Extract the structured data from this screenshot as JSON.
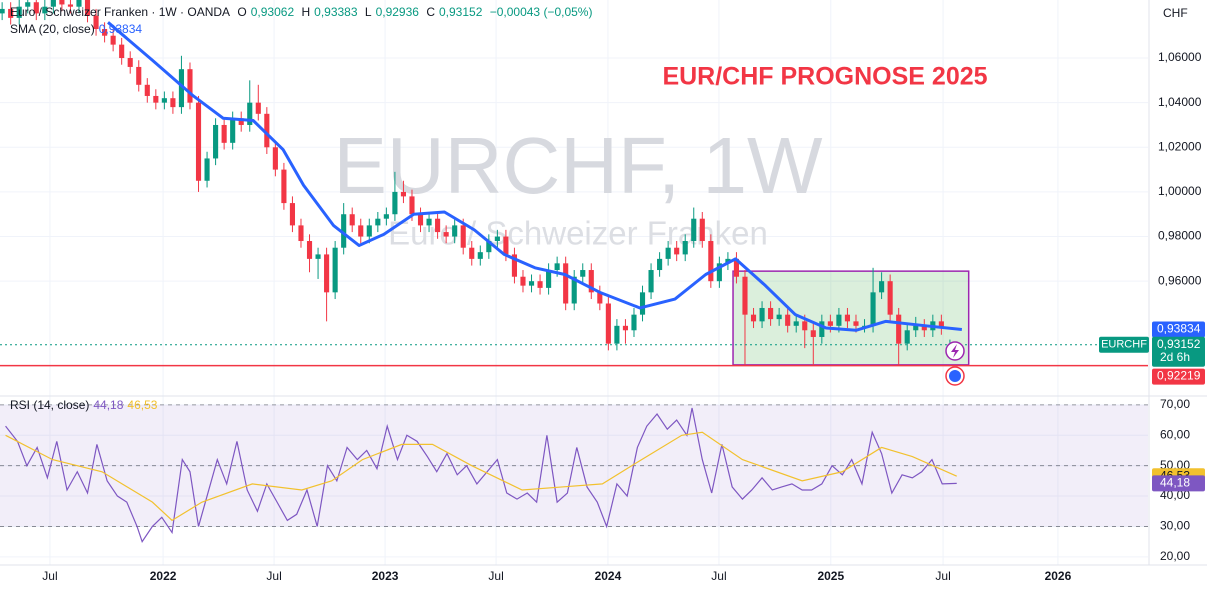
{
  "header": {
    "symbol": "Euro / Schweizer Franken · 1W · OANDA",
    "ohlc": [
      {
        "key": "O",
        "value": "0,93062"
      },
      {
        "key": "H",
        "value": "0,93383"
      },
      {
        "key": "L",
        "value": "0,92936"
      },
      {
        "key": "C",
        "value": "0,93152"
      }
    ],
    "change": "−0,00043 (−0,05%)"
  },
  "currency": "CHF",
  "chart_data": [
    {
      "type": "candlestick",
      "title": "EUR/CHF PROGNOSE 2025",
      "watermark": {
        "title": "EURCHF, 1W",
        "subtitle": "Euro / Schweizer Franken"
      },
      "up_color": "#089981",
      "down_color": "#f23645",
      "open": [
        1.08,
        1.082,
        1.078,
        1.083,
        1.085,
        1.08,
        1.083,
        1.086,
        1.084,
        1.083,
        1.086,
        1.079,
        1.073,
        1.07,
        1.066,
        1.06,
        1.056,
        1.048,
        1.043,
        1.04,
        1.042,
        1.038,
        1.055,
        1.04,
        1.005,
        1.015,
        1.03,
        1.022,
        1.033,
        1.03,
        1.04,
        1.035,
        1.02,
        1.01,
        0.995,
        0.985,
        0.978,
        0.97,
        0.972,
        0.955,
        0.975,
        0.99,
        0.985,
        0.98,
        0.985,
        0.988,
        0.99,
        1.0,
        0.998,
        0.99,
        0.985,
        0.988,
        0.982,
        0.98,
        0.985,
        0.975,
        0.97,
        0.973,
        0.978,
        0.98,
        0.972,
        0.962,
        0.958,
        0.96,
        0.957,
        0.965,
        0.968,
        0.95,
        0.962,
        0.965,
        0.955,
        0.95,
        0.932,
        0.94,
        0.938,
        0.945,
        0.955,
        0.965,
        0.97,
        0.975,
        0.972,
        0.978,
        0.988,
        0.978,
        0.96,
        0.968,
        0.97,
        0.962,
        0.945,
        0.942,
        0.948,
        0.943,
        0.945,
        0.94,
        0.942,
        0.938,
        0.935,
        0.942,
        0.94,
        0.945,
        0.942,
        0.94,
        0.94,
        0.955,
        0.96,
        0.945,
        0.932,
        0.938,
        0.94,
        0.938,
        0.942,
        0.93062
      ],
      "high": [
        1.085,
        1.085,
        1.086,
        1.088,
        1.088,
        1.086,
        1.089,
        1.089,
        1.087,
        1.089,
        1.089,
        1.082,
        1.076,
        1.073,
        1.069,
        1.063,
        1.059,
        1.051,
        1.046,
        1.045,
        1.045,
        1.061,
        1.058,
        1.043,
        1.018,
        1.033,
        1.033,
        1.036,
        1.036,
        1.05,
        1.048,
        1.038,
        1.023,
        1.013,
        0.998,
        0.988,
        0.981,
        0.975,
        0.975,
        0.978,
        0.995,
        0.993,
        0.988,
        0.988,
        0.991,
        0.993,
        1.009,
        1.005,
        1.001,
        0.993,
        0.991,
        0.991,
        0.985,
        0.988,
        0.988,
        0.978,
        0.976,
        0.981,
        0.983,
        0.983,
        0.975,
        0.965,
        0.963,
        0.963,
        0.968,
        0.971,
        0.971,
        0.965,
        0.968,
        0.968,
        0.958,
        0.953,
        0.943,
        0.943,
        0.948,
        0.958,
        0.968,
        0.973,
        0.978,
        0.978,
        0.981,
        0.993,
        0.991,
        0.981,
        0.971,
        0.973,
        0.973,
        0.965,
        0.948,
        0.951,
        0.951,
        0.948,
        0.948,
        0.945,
        0.945,
        0.941,
        0.945,
        0.945,
        0.948,
        0.948,
        0.945,
        0.943,
        0.966,
        0.964,
        0.963,
        0.948,
        0.941,
        0.944,
        0.943,
        0.945,
        0.945,
        0.93383
      ],
      "low": [
        1.077,
        1.075,
        1.075,
        1.08,
        1.077,
        1.077,
        1.08,
        1.081,
        1.08,
        1.08,
        1.076,
        1.07,
        1.067,
        1.063,
        1.057,
        1.053,
        1.045,
        1.04,
        1.037,
        1.037,
        1.035,
        1.035,
        1.037,
        1.0,
        1.002,
        1.012,
        1.019,
        1.019,
        1.027,
        1.027,
        1.032,
        1.017,
        1.007,
        0.992,
        0.982,
        0.975,
        0.964,
        0.961,
        0.942,
        0.952,
        0.972,
        0.982,
        0.977,
        0.977,
        0.982,
        0.985,
        0.987,
        0.995,
        0.987,
        0.982,
        0.982,
        0.979,
        0.977,
        0.977,
        0.972,
        0.967,
        0.967,
        0.97,
        0.975,
        0.969,
        0.959,
        0.955,
        0.955,
        0.954,
        0.954,
        0.962,
        0.947,
        0.947,
        0.959,
        0.952,
        0.947,
        0.929,
        0.929,
        0.932,
        0.935,
        0.942,
        0.952,
        0.962,
        0.967,
        0.969,
        0.969,
        0.975,
        0.975,
        0.957,
        0.957,
        0.965,
        0.959,
        0.922,
        0.939,
        0.939,
        0.94,
        0.94,
        0.937,
        0.937,
        0.93,
        0.922,
        0.932,
        0.937,
        0.937,
        0.939,
        0.937,
        0.937,
        0.937,
        0.952,
        0.942,
        0.922,
        0.929,
        0.935,
        0.935,
        0.935,
        0.936,
        0.92936
      ],
      "close": [
        1.082,
        1.078,
        1.083,
        1.085,
        1.08,
        1.083,
        1.086,
        1.084,
        1.083,
        1.086,
        1.079,
        1.073,
        1.07,
        1.066,
        1.06,
        1.056,
        1.048,
        1.043,
        1.04,
        1.042,
        1.038,
        1.055,
        1.04,
        1.005,
        1.015,
        1.03,
        1.022,
        1.033,
        1.03,
        1.04,
        1.035,
        1.02,
        1.01,
        0.995,
        0.985,
        0.978,
        0.97,
        0.972,
        0.955,
        0.975,
        0.99,
        0.985,
        0.98,
        0.985,
        0.988,
        0.99,
        1.0,
        0.998,
        0.99,
        0.985,
        0.988,
        0.982,
        0.98,
        0.985,
        0.975,
        0.97,
        0.973,
        0.978,
        0.98,
        0.972,
        0.962,
        0.958,
        0.96,
        0.957,
        0.965,
        0.968,
        0.95,
        0.962,
        0.965,
        0.955,
        0.95,
        0.932,
        0.94,
        0.938,
        0.945,
        0.955,
        0.965,
        0.97,
        0.975,
        0.972,
        0.978,
        0.988,
        0.978,
        0.96,
        0.968,
        0.97,
        0.962,
        0.945,
        0.942,
        0.948,
        0.943,
        0.945,
        0.94,
        0.942,
        0.938,
        0.935,
        0.942,
        0.94,
        0.945,
        0.942,
        0.94,
        0.94,
        0.955,
        0.96,
        0.945,
        0.932,
        0.938,
        0.94,
        0.938,
        0.942,
        0.939,
        0.93152
      ],
      "xlim": [
        -0.25,
        134.2
      ],
      "xticks": [
        {
          "value": 5.6,
          "label": "Jul"
        },
        {
          "value": 18.85,
          "label": "2022"
        },
        {
          "value": 31.85,
          "label": "Jul"
        },
        {
          "value": 44.85,
          "label": "2023"
        },
        {
          "value": 57.85,
          "label": "Jul"
        },
        {
          "value": 70.95,
          "label": "2024"
        },
        {
          "value": 83.95,
          "label": "Jul"
        },
        {
          "value": 97.05,
          "label": "2025"
        },
        {
          "value": 110.2,
          "label": "Jul"
        },
        {
          "value": 123.65,
          "label": "2026"
        }
      ],
      "ylim": [
        0.909,
        1.086
      ],
      "yticks": [
        {
          "value": 0.96,
          "label": "0,96000"
        },
        {
          "value": 0.98,
          "label": "0,98000"
        },
        {
          "value": 1.0,
          "label": "1,00000"
        },
        {
          "value": 1.02,
          "label": "1,02000"
        },
        {
          "value": 1.04,
          "label": "1,04000"
        },
        {
          "value": 1.06,
          "label": "1,06000"
        }
      ],
      "grid": true,
      "sma": {
        "name": "SMA (20, close)",
        "color": "#2962ff",
        "label": "0,93834",
        "x": [
          12.4,
          17.6,
          22.4,
          25.9,
          29.4,
          32.9,
          35.3,
          38.8,
          41.8,
          44.7,
          48.2,
          51.8,
          55.3,
          58.8,
          62.4,
          65.9,
          70,
          74.7,
          78.8,
          82.4,
          85.9,
          89.4,
          92.9,
          96.5,
          100,
          103.5,
          108.2,
          112.4
        ],
        "values": [
          1.076,
          1.059,
          1.043,
          1.033,
          1.032,
          1.019,
          1.003,
          0.985,
          0.976,
          0.981,
          0.99,
          0.991,
          0.983,
          0.972,
          0.966,
          0.963,
          0.955,
          0.948,
          0.952,
          0.963,
          0.97,
          0.958,
          0.945,
          0.939,
          0.938,
          0.942,
          0.94,
          0.93834
        ]
      },
      "last_price": {
        "value": 0.93152,
        "label": "0,93152",
        "symbol": "EURCHF",
        "countdown": "2d 6h",
        "color": "#089981"
      },
      "level": {
        "value": 0.92219,
        "label": "0,92219",
        "color": "#f23645"
      },
      "box": {
        "x": [
          85.6,
          113.2
        ],
        "y": [
          0.9225,
          0.9645
        ],
        "fill": "rgba(76,175,80,0.2)",
        "stroke": "#9c27b0"
      }
    },
    {
      "type": "line",
      "title": "RSI (14, close)",
      "xlim": [
        -0.25,
        134.2
      ],
      "ylim": [
        18.3,
        72.6
      ],
      "yticks": [
        {
          "value": 20,
          "label": "20,00"
        },
        {
          "value": 30,
          "label": "30,00"
        },
        {
          "value": 40,
          "label": "40,00"
        },
        {
          "value": 50,
          "label": "50,00"
        },
        {
          "value": 60,
          "label": "60,00"
        },
        {
          "value": 70,
          "label": "70,00"
        }
      ],
      "band": [
        30,
        70
      ],
      "dashed_levels": [
        30,
        50,
        70
      ],
      "band_color": "rgba(126,87,194,0.1)",
      "series": [
        {
          "color": "#7e57c2",
          "label": "44,18",
          "x": [
            0.4,
            1.8,
            2.9,
            4.1,
            5.3,
            6.4,
            7.6,
            8.8,
            10,
            11.1,
            12.3,
            13.5,
            14.6,
            15.8,
            16.4,
            17.6,
            18.7,
            19.9,
            21.1,
            22,
            23,
            24,
            25.2,
            26.3,
            27.5,
            28.7,
            29.9,
            31,
            32.2,
            33.4,
            34.5,
            35.7,
            36.9,
            38.1,
            39.2,
            40.4,
            41.6,
            42.7,
            43.9,
            45.1,
            46.3,
            47.4,
            48.6,
            49.8,
            50.9,
            52.1,
            53.3,
            54.4,
            55.6,
            56.8,
            58,
            59.1,
            60.3,
            61.5,
            62.6,
            63.8,
            65,
            66.2,
            67.3,
            68.5,
            69.7,
            70.8,
            72,
            73.2,
            74.4,
            75.5,
            76.7,
            77.9,
            79,
            80.2,
            80.8,
            82,
            83.1,
            84.3,
            85.5,
            86.7,
            87.8,
            89,
            90.2,
            91.3,
            92.5,
            93.7,
            94.8,
            96,
            97.2,
            98.4,
            99.5,
            100.7,
            101.9,
            103,
            104.2,
            105.4,
            106.6,
            107.7,
            108.9,
            109.5,
            110.1,
            111.8
          ],
          "values": [
            63,
            58,
            50,
            56,
            46,
            58,
            42,
            48,
            41,
            57,
            45,
            40,
            38,
            30,
            25,
            30,
            33,
            28,
            52,
            48,
            30,
            40,
            52,
            44,
            58,
            42,
            35,
            44,
            38,
            32,
            34,
            42,
            30,
            50,
            45,
            56,
            52,
            55,
            49,
            63,
            52,
            60,
            58,
            53,
            48,
            54,
            47,
            50,
            44,
            48,
            52,
            41,
            39,
            41,
            38,
            60,
            38,
            41,
            56,
            43,
            38,
            30,
            44,
            40,
            56,
            63,
            67,
            62,
            65,
            60,
            69,
            52,
            41,
            57,
            43,
            39,
            42,
            46,
            42,
            43,
            44,
            42,
            42,
            44,
            50,
            47,
            52,
            44,
            61,
            54,
            41,
            47,
            46,
            48,
            52,
            48,
            44,
            44.18
          ]
        },
        {
          "color": "#f2c12e",
          "label": "46,53",
          "x": [
            0.4,
            5.9,
            11.7,
            17.6,
            19.9,
            23.4,
            29.3,
            35.1,
            38.6,
            42.2,
            46.8,
            50.4,
            55,
            60.9,
            65.6,
            70.3,
            74.9,
            79.6,
            82,
            86.7,
            93.7,
            98.4,
            103,
            106.6,
            111.8
          ],
          "values": [
            60,
            52,
            48,
            38,
            32,
            38,
            44,
            42,
            45,
            52,
            57,
            57,
            50,
            42,
            43,
            44,
            52,
            60,
            61,
            52,
            45,
            48,
            56,
            53,
            46.53
          ]
        }
      ]
    }
  ]
}
